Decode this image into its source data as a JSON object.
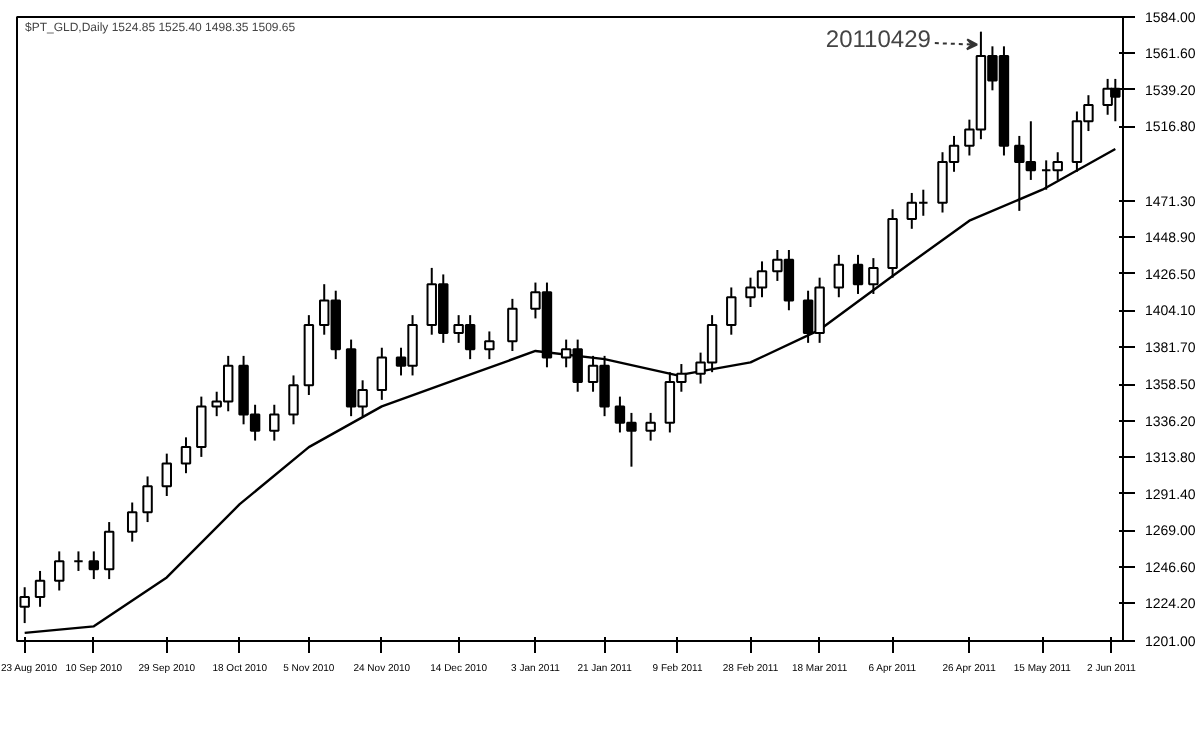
{
  "chart_data": {
    "type": "candlestick",
    "title": "$PT_GLD,Daily  1524.85 1525.40 1498.35 1509.65",
    "color": "#000000",
    "grid": false,
    "x": [
      "2010-08-23",
      "2010-08-27",
      "2010-09-01",
      "2010-09-06",
      "2010-09-10",
      "2010-09-14",
      "2010-09-20",
      "2010-09-24",
      "2010-09-29",
      "2010-10-04",
      "2010-10-08",
      "2010-10-12",
      "2010-10-15",
      "2010-10-19",
      "2010-10-22",
      "2010-10-27",
      "2010-11-01",
      "2010-11-05",
      "2010-11-09",
      "2010-11-12",
      "2010-11-16",
      "2010-11-19",
      "2010-11-24",
      "2010-11-29",
      "2010-12-02",
      "2010-12-07",
      "2010-12-10",
      "2010-12-14",
      "2010-12-17",
      "2010-12-22",
      "2010-12-28",
      "2011-01-03",
      "2011-01-06",
      "2011-01-11",
      "2011-01-14",
      "2011-01-18",
      "2011-01-21",
      "2011-01-25",
      "2011-01-28",
      "2011-02-02",
      "2011-02-07",
      "2011-02-10",
      "2011-02-15",
      "2011-02-18",
      "2011-02-23",
      "2011-02-28",
      "2011-03-03",
      "2011-03-07",
      "2011-03-10",
      "2011-03-15",
      "2011-03-18",
      "2011-03-23",
      "2011-03-28",
      "2011-04-01",
      "2011-04-06",
      "2011-04-11",
      "2011-04-14",
      "2011-04-19",
      "2011-04-22",
      "2011-04-26",
      "2011-04-29",
      "2011-05-02",
      "2011-05-05",
      "2011-05-09",
      "2011-05-12",
      "2011-05-16",
      "2011-05-19",
      "2011-05-24",
      "2011-05-27",
      "2011-06-01",
      "2011-06-03"
    ],
    "ohlc": [
      [
        1222,
        1234,
        1212,
        1228
      ],
      [
        1228,
        1244,
        1222,
        1238
      ],
      [
        1238,
        1256,
        1232,
        1250
      ],
      [
        1250,
        1256,
        1244,
        1250
      ],
      [
        1250,
        1256,
        1239,
        1245
      ],
      [
        1245,
        1274,
        1239,
        1268
      ],
      [
        1268,
        1286,
        1262,
        1280
      ],
      [
        1280,
        1302,
        1274,
        1296
      ],
      [
        1296,
        1316,
        1290,
        1310
      ],
      [
        1310,
        1326,
        1304,
        1320
      ],
      [
        1320,
        1351,
        1314,
        1345
      ],
      [
        1345,
        1354,
        1339,
        1348
      ],
      [
        1348,
        1376,
        1342,
        1370
      ],
      [
        1370,
        1376,
        1334,
        1340
      ],
      [
        1340,
        1346,
        1324,
        1330
      ],
      [
        1330,
        1346,
        1324,
        1340
      ],
      [
        1340,
        1364,
        1334,
        1358
      ],
      [
        1358,
        1401,
        1352,
        1395
      ],
      [
        1395,
        1420,
        1389,
        1410
      ],
      [
        1410,
        1416,
        1374,
        1380
      ],
      [
        1380,
        1386,
        1339,
        1345
      ],
      [
        1345,
        1361,
        1339,
        1355
      ],
      [
        1355,
        1381,
        1349,
        1375
      ],
      [
        1375,
        1381,
        1364,
        1370
      ],
      [
        1370,
        1401,
        1364,
        1395
      ],
      [
        1395,
        1430,
        1389,
        1420
      ],
      [
        1420,
        1426,
        1384,
        1390
      ],
      [
        1390,
        1401,
        1384,
        1395
      ],
      [
        1395,
        1401,
        1374,
        1380
      ],
      [
        1380,
        1391,
        1374,
        1385
      ],
      [
        1385,
        1411,
        1379,
        1405
      ],
      [
        1405,
        1421,
        1399,
        1415
      ],
      [
        1415,
        1421,
        1369,
        1375
      ],
      [
        1375,
        1386,
        1369,
        1380
      ],
      [
        1380,
        1386,
        1354,
        1360
      ],
      [
        1360,
        1376,
        1354,
        1370
      ],
      [
        1370,
        1376,
        1339,
        1345
      ],
      [
        1345,
        1351,
        1329,
        1335
      ],
      [
        1335,
        1341,
        1308,
        1330
      ],
      [
        1330,
        1341,
        1324,
        1335
      ],
      [
        1335,
        1366,
        1329,
        1360
      ],
      [
        1360,
        1371,
        1354,
        1365
      ],
      [
        1365,
        1378,
        1359,
        1372
      ],
      [
        1372,
        1401,
        1366,
        1395
      ],
      [
        1395,
        1418,
        1389,
        1412
      ],
      [
        1412,
        1424,
        1406,
        1418
      ],
      [
        1418,
        1434,
        1412,
        1428
      ],
      [
        1428,
        1441,
        1422,
        1435
      ],
      [
        1435,
        1441,
        1404,
        1410
      ],
      [
        1410,
        1416,
        1384,
        1390
      ],
      [
        1390,
        1424,
        1384,
        1418
      ],
      [
        1418,
        1438,
        1412,
        1432
      ],
      [
        1432,
        1438,
        1414,
        1420
      ],
      [
        1420,
        1436,
        1414,
        1430
      ],
      [
        1430,
        1466,
        1424,
        1460
      ],
      [
        1460,
        1476,
        1454,
        1470
      ],
      [
        1470,
        1478,
        1462,
        1470
      ],
      [
        1470,
        1501,
        1464,
        1495
      ],
      [
        1495,
        1511,
        1489,
        1505
      ],
      [
        1505,
        1521,
        1499,
        1515
      ],
      [
        1515,
        1575,
        1509,
        1560
      ],
      [
        1560,
        1566,
        1539,
        1545
      ],
      [
        1560,
        1566,
        1499,
        1505
      ],
      [
        1505,
        1511,
        1465,
        1495
      ],
      [
        1495,
        1520,
        1484,
        1490
      ],
      [
        1490,
        1496,
        1478,
        1490
      ],
      [
        1490,
        1501,
        1484,
        1495
      ],
      [
        1495,
        1526,
        1489,
        1520
      ],
      [
        1520,
        1536,
        1514,
        1530
      ],
      [
        1530,
        1546,
        1524,
        1540
      ],
      [
        1540,
        1546,
        1520,
        1535
      ]
    ],
    "series": [
      {
        "type": "line",
        "color": "#000000",
        "x": [
          "2010-08-23",
          "2010-09-10",
          "2010-09-29",
          "2010-10-18",
          "2010-11-05",
          "2010-11-24",
          "2010-12-14",
          "2011-01-03",
          "2011-01-21",
          "2011-02-09",
          "2011-02-28",
          "2011-03-18",
          "2011-04-06",
          "2011-04-26",
          "2011-05-15",
          "2011-06-03"
        ],
        "values": [
          1206,
          1210,
          1240,
          1285,
          1320,
          1345,
          1362,
          1379,
          1374,
          1364,
          1372,
          1392,
          1425,
          1459,
          1478,
          1503
        ]
      }
    ],
    "annotations": [
      {
        "text": "20110429",
        "x": "2011-04-29",
        "y": 1575
      }
    ],
    "xlim": [
      "2010-08-21",
      "2011-06-05"
    ],
    "xticks": [
      {
        "value": "2010-08-23",
        "label": "23 Aug 2010"
      },
      {
        "value": "2010-09-10",
        "label": "10 Sep 2010"
      },
      {
        "value": "2010-09-29",
        "label": "29 Sep 2010"
      },
      {
        "value": "2010-10-18",
        "label": "18 Oct 2010"
      },
      {
        "value": "2010-11-05",
        "label": "5 Nov 2010"
      },
      {
        "value": "2010-11-24",
        "label": "24 Nov 2010"
      },
      {
        "value": "2010-12-14",
        "label": "14 Dec 2010"
      },
      {
        "value": "2011-01-03",
        "label": "3 Jan 2011"
      },
      {
        "value": "2011-01-21",
        "label": "21 Jan 2011"
      },
      {
        "value": "2011-02-09",
        "label": "9 Feb 2011"
      },
      {
        "value": "2011-02-28",
        "label": "28 Feb 2011"
      },
      {
        "value": "2011-03-18",
        "label": "18 Mar 2011"
      },
      {
        "value": "2011-04-06",
        "label": "6 Apr 2011"
      },
      {
        "value": "2011-04-26",
        "label": "26 Apr 2011"
      },
      {
        "value": "2011-05-15",
        "label": "15 May 2011"
      },
      {
        "value": "2011-06-02",
        "label": "2 Jun 2011"
      }
    ],
    "ylim": [
      1201,
      1584
    ],
    "yticks": [
      {
        "value": 1201,
        "label": "1201.00"
      },
      {
        "value": 1224.2,
        "label": "1224.20"
      },
      {
        "value": 1246.6,
        "label": "1246.60"
      },
      {
        "value": 1269,
        "label": "1269.00"
      },
      {
        "value": 1291.4,
        "label": "1291.40"
      },
      {
        "value": 1313.8,
        "label": "1313.80"
      },
      {
        "value": 1336.2,
        "label": "1336.20"
      },
      {
        "value": 1358.5,
        "label": "1358.50"
      },
      {
        "value": 1381.7,
        "label": "1381.70"
      },
      {
        "value": 1404.1,
        "label": "1404.10"
      },
      {
        "value": 1426.5,
        "label": "1426.50"
      },
      {
        "value": 1448.9,
        "label": "1448.90"
      },
      {
        "value": 1471.3,
        "label": "1471.30"
      },
      {
        "value": 1516.8,
        "label": "1516.80"
      },
      {
        "value": 1539.2,
        "label": "1539.20"
      },
      {
        "value": 1561.6,
        "label": "1561.60"
      },
      {
        "value": 1584,
        "label": "1584.00"
      }
    ]
  }
}
